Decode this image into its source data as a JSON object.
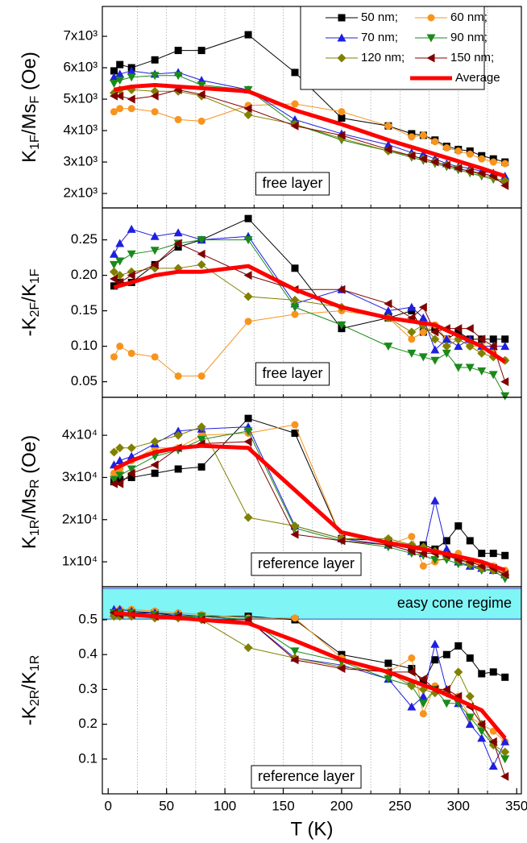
{
  "chart_data": [
    {
      "type": "line",
      "ylabel": [
        {
          "text": "K",
          "sub": false
        },
        {
          "text": "1F",
          "sub": true
        },
        {
          "text": "/Ms",
          "sub": false
        },
        {
          "text": "F",
          "sub": true
        },
        {
          "text": " (Oe)",
          "sub": false
        }
      ],
      "xlim": [
        -5,
        354
      ],
      "xgrid": [
        25,
        50,
        75,
        100,
        125,
        150,
        175,
        200,
        225,
        250,
        275,
        300,
        325
      ],
      "ylim": [
        1540,
        7950
      ],
      "yticks": [
        {
          "value": 7000,
          "label": "7x10³"
        },
        {
          "value": 6000,
          "label": "6x10³"
        },
        {
          "value": 5000,
          "label": "5x10³"
        },
        {
          "value": 4000,
          "label": "4x10³"
        },
        {
          "value": 3000,
          "label": "3x10³"
        },
        {
          "value": 2000,
          "label": "2x10³"
        }
      ],
      "annotation": "free layer",
      "legend": "upper right",
      "x": [
        5,
        10,
        20,
        40,
        60,
        80,
        120,
        160,
        200,
        240,
        260,
        270,
        280,
        290,
        300,
        310,
        320,
        330,
        340
      ],
      "series": [
        {
          "name": "50 nm;",
          "color": "#000000",
          "marker": "square",
          "values": [
            5900,
            6100,
            6000,
            6250,
            6550,
            6550,
            7050,
            5850,
            4400,
            4150,
            3900,
            3850,
            3700,
            3500,
            3400,
            3350,
            3200,
            3100,
            3000
          ]
        },
        {
          "name": "60 nm;",
          "color": "#f7941d",
          "marker": "circle",
          "values": [
            4600,
            4700,
            4700,
            4600,
            4350,
            4300,
            4800,
            4850,
            4600,
            4150,
            3800,
            3850,
            3650,
            3450,
            3350,
            3250,
            3100,
            3000,
            2950
          ]
        },
        {
          "name": "70 nm;",
          "color": "#1f1fe0",
          "marker": "triangle-up",
          "values": [
            5700,
            5800,
            5900,
            5800,
            5850,
            5600,
            5300,
            4350,
            3900,
            3550,
            3300,
            3250,
            3100,
            2950,
            2850,
            2800,
            2700,
            2650,
            2550
          ]
        },
        {
          "name": "90 nm;",
          "color": "#1a8a1a",
          "marker": "triangle-down",
          "values": [
            5500,
            5600,
            5700,
            5750,
            5750,
            5450,
            5300,
            4200,
            3700,
            3350,
            3150,
            3050,
            2950,
            2850,
            2750,
            2650,
            2550,
            2450,
            2350
          ]
        },
        {
          "name": "120 nm;",
          "color": "#808000",
          "marker": "diamond",
          "values": [
            5200,
            5300,
            5300,
            5250,
            5250,
            5100,
            4500,
            4200,
            3750,
            3350,
            3200,
            3100,
            3000,
            2900,
            2800,
            2700,
            2600,
            2500,
            2400
          ]
        },
        {
          "name": "150 nm;",
          "color": "#800000",
          "marker": "triangle-left",
          "values": [
            5100,
            5100,
            5000,
            5100,
            5300,
            5150,
            4700,
            4150,
            3850,
            3400,
            3200,
            3100,
            3000,
            2900,
            2800,
            2700,
            2650,
            2550,
            2250
          ]
        },
        {
          "name": "Average",
          "color": "#ff0000",
          "linewidth": 5,
          "x": [
            5,
            20,
            40,
            60,
            80,
            120,
            160,
            200,
            240,
            280,
            320,
            340
          ],
          "values": [
            5300,
            5400,
            5450,
            5400,
            5350,
            5250,
            4650,
            4200,
            3700,
            3250,
            2800,
            2550
          ]
        }
      ]
    },
    {
      "type": "line",
      "ylabel": [
        {
          "text": "-K",
          "sub": false
        },
        {
          "text": "2F",
          "sub": true
        },
        {
          "text": "/K",
          "sub": false
        },
        {
          "text": "1F",
          "sub": true
        }
      ],
      "xlim": [
        -5,
        354
      ],
      "xgrid": [
        25,
        50,
        75,
        100,
        125,
        150,
        175,
        200,
        225,
        250,
        275,
        300,
        325
      ],
      "ylim": [
        0.028,
        0.295
      ],
      "yticks": [
        0.25,
        {
          "value": 0.2,
          "label": "0.20"
        },
        0.15,
        {
          "value": 0.1,
          "label": "0.10"
        },
        0.05
      ],
      "annotation": "free layer",
      "x": [
        5,
        10,
        20,
        40,
        60,
        80,
        120,
        160,
        200,
        240,
        260,
        270,
        280,
        290,
        300,
        310,
        320,
        330,
        340
      ],
      "series": [
        {
          "color": "#000000",
          "marker": "square",
          "values": [
            0.185,
            0.19,
            0.19,
            0.215,
            0.24,
            0.25,
            0.28,
            0.21,
            0.125,
            0.14,
            0.15,
            0.12,
            0.125,
            0.11,
            0.12,
            0.11,
            0.11,
            0.11,
            0.11
          ]
        },
        {
          "color": "#f7941d",
          "marker": "circle",
          "values": [
            0.085,
            0.1,
            0.09,
            0.085,
            0.058,
            0.058,
            0.135,
            0.145,
            0.15,
            0.14,
            0.11,
            0.12,
            0.13,
            0.11,
            0.11,
            0.1,
            0.1,
            0.09,
            0.08
          ]
        },
        {
          "color": "#1f1fe0",
          "marker": "triangle-up",
          "values": [
            0.23,
            0.245,
            0.265,
            0.255,
            0.26,
            0.25,
            0.255,
            0.16,
            0.18,
            0.15,
            0.155,
            0.14,
            0.095,
            0.11,
            0.1,
            0.11,
            0.1,
            0.1,
            0.1
          ]
        },
        {
          "color": "#1a8a1a",
          "marker": "triangle-down",
          "values": [
            0.215,
            0.22,
            0.23,
            0.235,
            0.245,
            0.25,
            0.25,
            0.155,
            0.13,
            0.1,
            0.09,
            0.085,
            0.08,
            0.09,
            0.07,
            0.07,
            0.065,
            0.06,
            0.03
          ]
        },
        {
          "color": "#808000",
          "marker": "diamond",
          "values": [
            0.205,
            0.2,
            0.205,
            0.21,
            0.21,
            0.215,
            0.17,
            0.165,
            0.155,
            0.14,
            0.12,
            0.13,
            0.11,
            0.1,
            0.11,
            0.1,
            0.09,
            0.085,
            0.08
          ]
        },
        {
          "color": "#800000",
          "marker": "triangle-left",
          "values": [
            0.195,
            0.19,
            0.2,
            0.215,
            0.245,
            0.23,
            0.2,
            0.18,
            0.18,
            0.16,
            0.14,
            0.155,
            0.12,
            0.125,
            0.125,
            0.125,
            0.11,
            0.1,
            0.05
          ]
        },
        {
          "color": "#ff0000",
          "linewidth": 5,
          "x": [
            5,
            20,
            40,
            60,
            80,
            120,
            160,
            200,
            240,
            280,
            320,
            340
          ],
          "values": [
            0.183,
            0.19,
            0.2,
            0.205,
            0.205,
            0.213,
            0.18,
            0.155,
            0.14,
            0.13,
            0.1,
            0.078
          ]
        }
      ]
    },
    {
      "type": "line",
      "ylabel": [
        {
          "text": "K",
          "sub": false
        },
        {
          "text": "1R",
          "sub": true
        },
        {
          "text": "/Ms",
          "sub": false
        },
        {
          "text": "R",
          "sub": true
        },
        {
          "text": " (Oe)",
          "sub": false
        }
      ],
      "xlim": [
        -5,
        354
      ],
      "xgrid": [
        25,
        50,
        75,
        100,
        125,
        150,
        175,
        200,
        225,
        250,
        275,
        300,
        325
      ],
      "ylim": [
        4100,
        49000
      ],
      "yticks": [
        {
          "value": 40000,
          "label": "4x10⁴"
        },
        {
          "value": 30000,
          "label": "3x10⁴"
        },
        {
          "value": 20000,
          "label": "2x10⁴"
        },
        {
          "value": 10000,
          "label": "1x10⁴"
        }
      ],
      "annotation": "reference layer",
      "x": [
        5,
        10,
        20,
        40,
        60,
        80,
        120,
        160,
        200,
        240,
        260,
        270,
        280,
        290,
        300,
        310,
        320,
        330,
        340
      ],
      "series": [
        {
          "color": "#000000",
          "marker": "square",
          "values": [
            29000,
            29500,
            30000,
            31000,
            32000,
            32500,
            44000,
            40500,
            15500,
            15000,
            13500,
            14000,
            13000,
            15000,
            18500,
            15000,
            12000,
            12000,
            11500
          ]
        },
        {
          "color": "#f7941d",
          "marker": "circle",
          "values": [
            31000,
            32000,
            34000,
            37000,
            37000,
            40000,
            40500,
            42500,
            15500,
            14000,
            16000,
            9000,
            10000,
            11000,
            12000,
            10000,
            9500,
            9000,
            8000
          ]
        },
        {
          "color": "#1f1fe0",
          "marker": "triangle-up",
          "values": [
            33000,
            34000,
            35000,
            38000,
            41000,
            41500,
            42000,
            18500,
            15500,
            14000,
            12500,
            12000,
            24500,
            13000,
            10000,
            9000,
            8500,
            8000,
            7000
          ]
        },
        {
          "color": "#1a8a1a",
          "marker": "triangle-down",
          "values": [
            29500,
            30500,
            32000,
            35000,
            36500,
            39000,
            41000,
            18000,
            15000,
            13500,
            12000,
            11500,
            10500,
            10500,
            9500,
            9000,
            8000,
            8000,
            6000
          ]
        },
        {
          "color": "#808000",
          "marker": "diamond",
          "values": [
            36000,
            37000,
            37000,
            38500,
            40000,
            42000,
            20500,
            18500,
            15500,
            15500,
            14000,
            13500,
            12500,
            11500,
            10500,
            9500,
            8500,
            8000,
            7000
          ]
        },
        {
          "color": "#800000",
          "marker": "triangle-left",
          "values": [
            28500,
            28500,
            31000,
            33000,
            37000,
            38000,
            38500,
            16500,
            15000,
            14000,
            12500,
            12000,
            12000,
            11500,
            10500,
            10000,
            9000,
            8500,
            7000
          ]
        },
        {
          "color": "#ff0000",
          "linewidth": 5,
          "x": [
            5,
            20,
            40,
            60,
            80,
            120,
            160,
            200,
            240,
            280,
            320,
            340
          ],
          "values": [
            32000,
            34000,
            36000,
            37000,
            37500,
            37000,
            27000,
            17000,
            14500,
            12500,
            10000,
            8000
          ]
        }
      ]
    },
    {
      "type": "line",
      "ylabel": [
        {
          "text": "-K",
          "sub": false
        },
        {
          "text": "2R",
          "sub": true
        },
        {
          "text": "/K",
          "sub": false
        },
        {
          "text": "1R",
          "sub": true
        }
      ],
      "xlabel": "T (K)",
      "xlim": [
        -5,
        354
      ],
      "xgrid": [
        25,
        50,
        75,
        100,
        125,
        150,
        175,
        200,
        225,
        250,
        275,
        300,
        325
      ],
      "xticks": [
        0,
        50,
        100,
        150,
        200,
        250,
        300,
        350
      ],
      "ylim": [
        0,
        0.595
      ],
      "yticks": [
        0.5,
        0.4,
        0.3,
        0.2,
        0.1
      ],
      "band": {
        "ylim": [
          0.502,
          0.59
        ],
        "color": "#7ff5f5",
        "label": "easy cone regime"
      },
      "annotation": "reference layer",
      "x": [
        5,
        10,
        20,
        40,
        60,
        80,
        120,
        160,
        200,
        240,
        260,
        270,
        280,
        290,
        300,
        310,
        320,
        330,
        340
      ],
      "series": [
        {
          "color": "#000000",
          "marker": "square",
          "values": [
            0.52,
            0.52,
            0.52,
            0.52,
            0.51,
            0.51,
            0.51,
            0.5,
            0.4,
            0.375,
            0.36,
            0.32,
            0.385,
            0.4,
            0.425,
            0.39,
            0.345,
            0.35,
            0.335
          ]
        },
        {
          "color": "#f7941d",
          "marker": "circle",
          "values": [
            0.52,
            0.53,
            0.53,
            0.525,
            0.52,
            0.515,
            0.505,
            0.505,
            0.39,
            0.35,
            0.39,
            0.23,
            0.31,
            0.29,
            0.28,
            0.22,
            0.2,
            0.18,
            0.15
          ]
        },
        {
          "color": "#1f1fe0",
          "marker": "triangle-up",
          "values": [
            0.53,
            0.53,
            0.525,
            0.52,
            0.515,
            0.51,
            0.5,
            0.39,
            0.37,
            0.33,
            0.25,
            0.28,
            0.43,
            0.3,
            0.26,
            0.2,
            0.16,
            0.08,
            0.15
          ]
        },
        {
          "color": "#1a8a1a",
          "marker": "triangle-down",
          "values": [
            0.52,
            0.52,
            0.52,
            0.515,
            0.51,
            0.51,
            0.5,
            0.41,
            0.38,
            0.33,
            0.31,
            0.26,
            0.3,
            0.26,
            0.26,
            0.22,
            0.18,
            0.14,
            0.1
          ]
        },
        {
          "color": "#808000",
          "marker": "diamond",
          "values": [
            0.51,
            0.51,
            0.51,
            0.505,
            0.505,
            0.5,
            0.42,
            0.39,
            0.365,
            0.35,
            0.31,
            0.3,
            0.29,
            0.29,
            0.35,
            0.28,
            0.2,
            0.14,
            0.12
          ]
        },
        {
          "color": "#800000",
          "marker": "triangle-left",
          "values": [
            0.52,
            0.515,
            0.515,
            0.51,
            0.51,
            0.5,
            0.5,
            0.385,
            0.36,
            0.35,
            0.35,
            0.33,
            0.3,
            0.3,
            0.28,
            0.25,
            0.2,
            0.15,
            0.05
          ]
        },
        {
          "color": "#ff0000",
          "linewidth": 5,
          "x": [
            5,
            20,
            40,
            60,
            80,
            120,
            160,
            200,
            240,
            280,
            320,
            340
          ],
          "values": [
            0.52,
            0.515,
            0.51,
            0.505,
            0.5,
            0.49,
            0.44,
            0.385,
            0.35,
            0.3,
            0.24,
            0.16
          ]
        }
      ]
    }
  ]
}
